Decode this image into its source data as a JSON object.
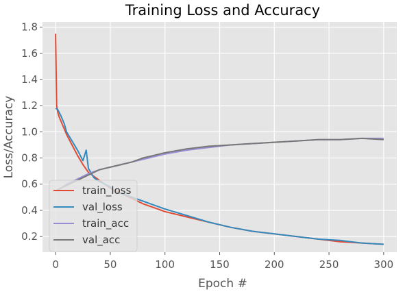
{
  "chart_data": {
    "type": "line",
    "title": "Training Loss and Accuracy",
    "xlabel": "Epoch #",
    "ylabel": "Loss/Accuracy",
    "xlim": [
      -12,
      312
    ],
    "ylim": [
      0.08,
      1.84
    ],
    "x_ticks": [
      0,
      50,
      100,
      150,
      200,
      250,
      300
    ],
    "y_ticks": [
      0.2,
      0.4,
      0.6,
      0.8,
      1.0,
      1.2,
      1.4,
      1.6,
      1.8
    ],
    "x_tick_labels": [
      "0",
      "50",
      "100",
      "150",
      "200",
      "250",
      "300"
    ],
    "y_tick_labels": [
      "0.2",
      "0.4",
      "0.6",
      "0.8",
      "1.0",
      "1.2",
      "1.4",
      "1.6",
      "1.8"
    ],
    "grid": true,
    "legend_position": "lower-left",
    "style": "ggplot",
    "colors": {
      "plot_background": "#e5e5e5",
      "grid": "#ffffff",
      "text": "#555555",
      "title": "#000000"
    },
    "series": [
      {
        "name": "train_loss",
        "color": "#e24a33",
        "x": [
          0,
          1,
          2,
          3,
          5,
          8,
          10,
          15,
          20,
          25,
          30,
          40,
          50,
          60,
          70,
          80,
          90,
          100,
          120,
          140,
          160,
          180,
          200,
          220,
          240,
          260,
          280,
          300
        ],
        "y": [
          1.75,
          1.2,
          1.15,
          1.12,
          1.08,
          1.02,
          0.98,
          0.9,
          0.82,
          0.75,
          0.69,
          0.63,
          0.57,
          0.53,
          0.49,
          0.45,
          0.42,
          0.39,
          0.35,
          0.31,
          0.27,
          0.24,
          0.22,
          0.2,
          0.18,
          0.16,
          0.15,
          0.14
        ]
      },
      {
        "name": "val_loss",
        "color": "#348abd",
        "x": [
          0,
          2,
          5,
          8,
          10,
          15,
          20,
          25,
          28,
          30,
          35,
          40,
          50,
          55,
          60,
          70,
          80,
          90,
          100,
          120,
          140,
          160,
          180,
          200,
          220,
          240,
          260,
          280,
          300
        ],
        "y": [
          1.18,
          1.17,
          1.12,
          1.06,
          1.0,
          0.93,
          0.86,
          0.78,
          0.86,
          0.72,
          0.65,
          0.62,
          0.58,
          0.53,
          0.53,
          0.5,
          0.47,
          0.44,
          0.41,
          0.36,
          0.31,
          0.27,
          0.24,
          0.22,
          0.2,
          0.18,
          0.17,
          0.15,
          0.14
        ]
      },
      {
        "name": "train_acc",
        "color": "#988ed5",
        "x": [
          0,
          5,
          10,
          15,
          20,
          30,
          40,
          50,
          60,
          70,
          80,
          90,
          100,
          120,
          140,
          160,
          180,
          200,
          220,
          240,
          260,
          280,
          300
        ],
        "y": [
          0.55,
          0.57,
          0.6,
          0.62,
          0.64,
          0.68,
          0.71,
          0.73,
          0.75,
          0.77,
          0.79,
          0.81,
          0.83,
          0.86,
          0.88,
          0.9,
          0.91,
          0.92,
          0.93,
          0.94,
          0.94,
          0.95,
          0.95
        ]
      },
      {
        "name": "val_acc",
        "color": "#777777",
        "x": [
          0,
          5,
          10,
          15,
          20,
          30,
          40,
          50,
          60,
          70,
          80,
          90,
          100,
          120,
          140,
          160,
          180,
          200,
          220,
          240,
          260,
          280,
          300
        ],
        "y": [
          0.55,
          0.57,
          0.59,
          0.61,
          0.63,
          0.67,
          0.71,
          0.73,
          0.75,
          0.77,
          0.8,
          0.82,
          0.84,
          0.87,
          0.89,
          0.9,
          0.91,
          0.92,
          0.93,
          0.94,
          0.94,
          0.95,
          0.94
        ]
      }
    ]
  }
}
